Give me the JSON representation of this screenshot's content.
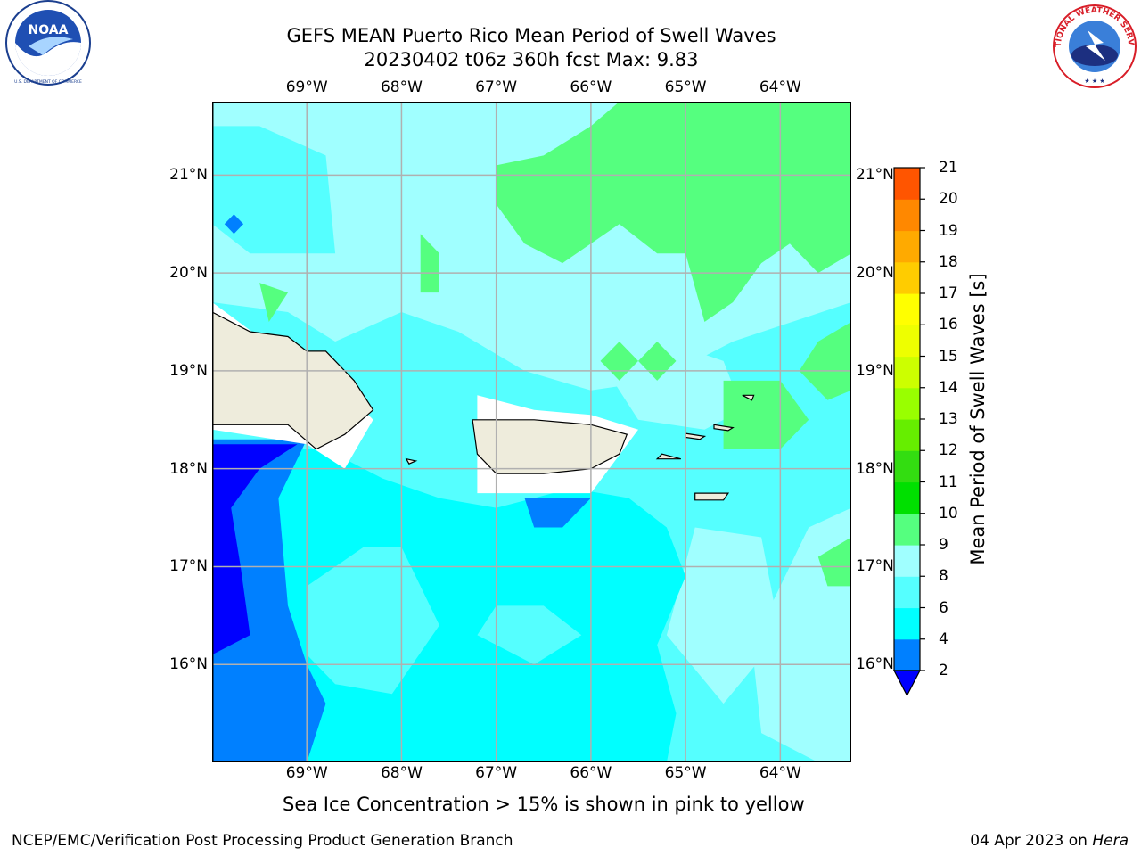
{
  "title": {
    "line1": "GEFS MEAN Puerto Rico Mean Period of Swell Waves",
    "line2": "20230402 t06z 360h fcst   Max: 9.83"
  },
  "axes": {
    "lon_labels": [
      "69°W",
      "68°W",
      "67°W",
      "66°W",
      "65°W",
      "64°W"
    ],
    "lat_labels": [
      "21°N",
      "20°N",
      "19°N",
      "18°N",
      "17°N",
      "16°N"
    ],
    "lon_values": [
      -69,
      -68,
      -67,
      -66,
      -65,
      -64
    ],
    "lat_values": [
      21,
      20,
      19,
      18,
      17,
      16
    ],
    "lon_range": [
      -70,
      -63.25
    ],
    "lat_range": [
      15,
      21.75
    ]
  },
  "colorbar": {
    "label": "Mean Period of Swell Waves [s]",
    "ticks": [
      "2",
      "4",
      "6",
      "8",
      "9",
      "10",
      "11",
      "12",
      "13",
      "14",
      "15",
      "16",
      "17",
      "18",
      "19",
      "20",
      "21"
    ],
    "levels": [
      2,
      4,
      6,
      8,
      9,
      10,
      11,
      12,
      13,
      14,
      15,
      16,
      17,
      18,
      19,
      20,
      21
    ],
    "colors": [
      "#0080ff",
      "#00ffff",
      "#55ffff",
      "#a0ffff",
      "#55ff7f",
      "#00e000",
      "#33dd11",
      "#66ee00",
      "#99ff00",
      "#ccff00",
      "#eeff00",
      "#ffff00",
      "#ffcc00",
      "#ffaa00",
      "#ff8800",
      "#ff5500",
      "#ff2200",
      "#ff0000"
    ],
    "under_color": "#0000ff"
  },
  "legend_colors": {
    "land": "#eeecdc",
    "grid": "#b0b0b0",
    "band_2_4": "#0080ff",
    "band_below_2": "#0000ff",
    "band_4_6": "#00ffff",
    "band_6_8": "#55ffff",
    "band_8_9": "#a0ffff",
    "band_9_10": "#55ff7f"
  },
  "caption": "Sea Ice Concentration > 15% is shown in pink to yellow",
  "footer": {
    "left": "NCEP/EMC/Verification Post Processing Product Generation Branch",
    "date": "04 Apr 2023 on ",
    "host": "Hera"
  },
  "logos": {
    "noaa_text": "NOAA",
    "nws_text": "NATIONAL WEATHER SERVICE"
  }
}
